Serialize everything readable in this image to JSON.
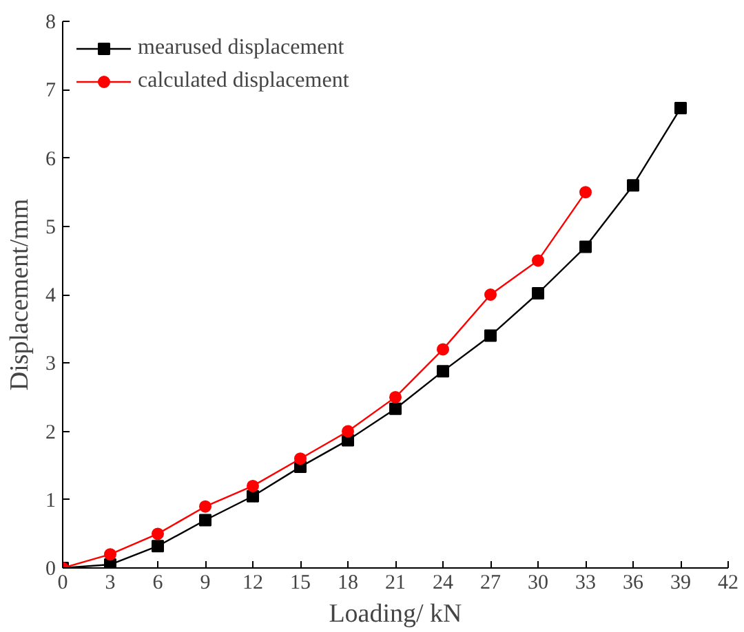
{
  "chart_data": {
    "type": "line",
    "xlabel": "Loading/ kN",
    "ylabel": "Displacement/mm",
    "x": [
      0,
      3,
      6,
      9,
      12,
      15,
      18,
      21,
      24,
      27,
      30,
      33,
      36,
      39
    ],
    "series": [
      {
        "name": "mearused displacement",
        "color": "#000000",
        "marker": "square",
        "values": [
          0,
          0.05,
          0.32,
          0.7,
          1.05,
          1.48,
          1.87,
          2.33,
          2.88,
          3.4,
          4.02,
          4.7,
          5.6,
          6.73
        ]
      },
      {
        "name": "calculated displacement",
        "color": "#ff0000",
        "marker": "circle",
        "values": [
          0,
          0.2,
          0.5,
          0.9,
          1.2,
          1.6,
          2.0,
          2.5,
          3.2,
          4.0,
          4.5,
          5.5,
          null,
          null
        ]
      }
    ],
    "xlim": [
      0,
      42
    ],
    "xticks": [
      0,
      3,
      6,
      9,
      12,
      15,
      18,
      21,
      24,
      27,
      30,
      33,
      36,
      39,
      42
    ],
    "ylim": [
      0,
      8
    ],
    "yticks": [
      0,
      1,
      2,
      3,
      4,
      5,
      6,
      7,
      8
    ],
    "grid": false,
    "legend": "top left",
    "line_style": "solid"
  }
}
